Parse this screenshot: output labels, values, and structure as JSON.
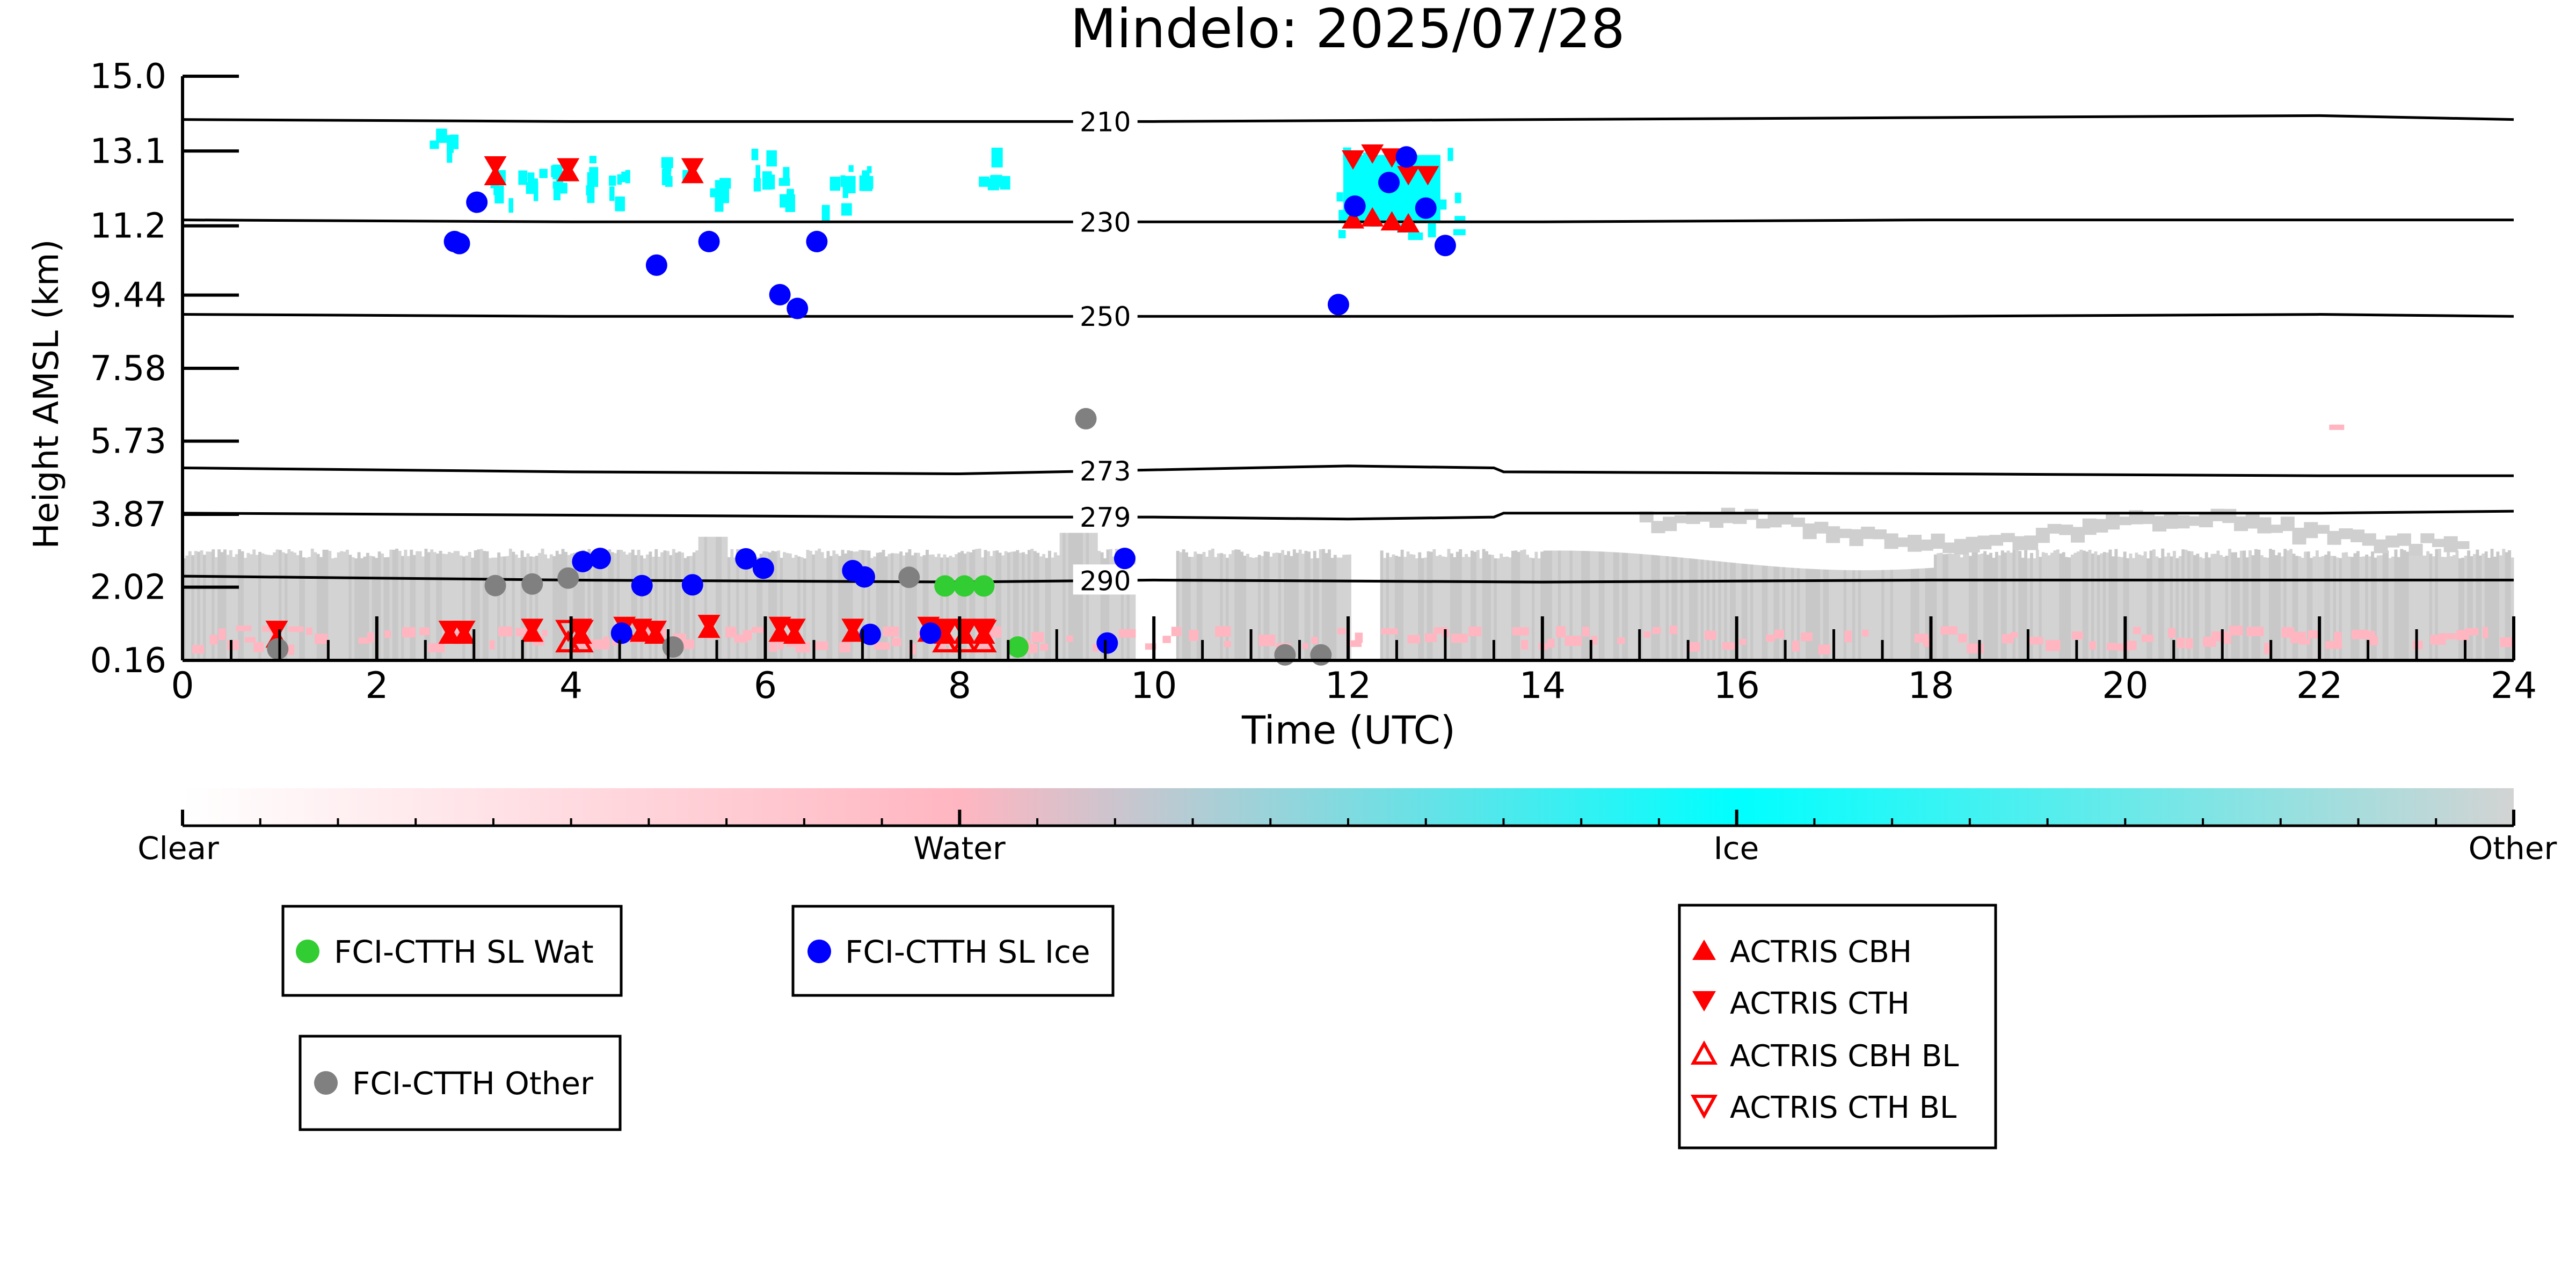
{
  "chart_data": {
    "type": "scatter",
    "title": "Mindelo: 2025/07/28",
    "xlabel": "Time (UTC)",
    "ylabel": "Height AMSL (km)",
    "xlim": [
      0,
      24
    ],
    "ylim": [
      0.16,
      15.0
    ],
    "xticks": [
      "0",
      "2",
      "4",
      "6",
      "8",
      "10",
      "12",
      "14",
      "16",
      "18",
      "20",
      "22",
      "24"
    ],
    "yticks": [
      "0.16",
      "2.02",
      "3.87",
      "5.73",
      "7.58",
      "9.44",
      "11.2",
      "13.1",
      "15.0"
    ],
    "yticks_values": [
      0.16,
      2.02,
      3.87,
      5.73,
      7.58,
      9.44,
      11.2,
      13.1,
      15.0
    ],
    "grid": false,
    "colors": {
      "water": "#32cd32",
      "ice": "#0000ff",
      "other": "#808080",
      "actris": "#ff0000",
      "isotherm": "#000000"
    },
    "isotherms": [
      {
        "label": "210",
        "x": [
          0,
          4,
          8,
          10,
          14,
          18,
          22,
          24
        ],
        "y": [
          13.9,
          13.85,
          13.85,
          13.85,
          13.9,
          13.95,
          14.0,
          13.9
        ]
      },
      {
        "label": "230",
        "x": [
          0,
          4,
          8,
          10,
          14,
          18,
          22,
          24
        ],
        "y": [
          11.35,
          11.3,
          11.3,
          11.3,
          11.3,
          11.35,
          11.35,
          11.35
        ]
      },
      {
        "label": "250",
        "x": [
          0,
          4,
          8,
          10,
          14,
          18,
          22,
          24
        ],
        "y": [
          8.95,
          8.9,
          8.9,
          8.9,
          8.9,
          8.9,
          8.95,
          8.9
        ]
      },
      {
        "label": "273",
        "x": [
          0,
          4,
          8,
          10,
          12,
          13.5,
          13.6,
          18,
          22,
          24
        ],
        "y": [
          5.05,
          4.95,
          4.9,
          5.0,
          5.1,
          5.05,
          4.95,
          4.9,
          4.85,
          4.85
        ]
      },
      {
        "label": "279",
        "x": [
          0,
          4,
          8,
          10,
          12,
          13.5,
          13.6,
          18,
          22,
          24
        ],
        "y": [
          3.9,
          3.85,
          3.8,
          3.8,
          3.75,
          3.8,
          3.9,
          3.9,
          3.9,
          3.95
        ]
      },
      {
        "label": "290",
        "x": [
          0,
          4,
          8,
          10,
          14,
          18,
          22,
          24
        ],
        "y": [
          2.3,
          2.2,
          2.15,
          2.2,
          2.15,
          2.2,
          2.2,
          2.2
        ]
      }
    ],
    "series": [
      {
        "name": "FCI-CTTH SL Wat",
        "marker": "circle",
        "x": [
          7.85,
          8.05,
          8.25,
          8.6
        ],
        "y": [
          2.05,
          2.05,
          2.05,
          0.5
        ]
      },
      {
        "name": "FCI-CTTH SL Ice",
        "marker": "circle",
        "x": [
          2.8,
          2.85,
          3.03,
          4.12,
          4.3,
          4.52,
          4.73,
          4.88,
          5.25,
          5.42,
          5.8,
          5.98,
          6.15,
          6.33,
          6.53,
          6.9,
          7.02,
          7.08,
          7.7,
          9.52,
          9.7,
          11.9,
          12.07,
          12.42,
          12.6,
          12.8,
          13.0
        ],
        "y": [
          10.8,
          10.75,
          11.8,
          2.67,
          2.75,
          0.85,
          2.06,
          10.2,
          2.08,
          10.8,
          2.74,
          2.5,
          9.45,
          9.1,
          10.8,
          2.44,
          2.28,
          0.82,
          0.85,
          0.6,
          2.75,
          9.2,
          11.7,
          12.3,
          12.95,
          11.65,
          10.7
        ]
      },
      {
        "name": "FCI-CTTH Other",
        "marker": "circle",
        "x": [
          0.98,
          3.22,
          3.6,
          3.97,
          5.05,
          7.48,
          9.3,
          11.35,
          11.72
        ],
        "y": [
          0.45,
          2.06,
          2.1,
          2.25,
          0.5,
          2.27,
          6.3,
          0.3,
          0.3
        ]
      },
      {
        "name": "ACTRIS CBH",
        "marker": "triangle-up",
        "x": [
          0.97,
          2.75,
          2.9,
          3.22,
          3.6,
          3.97,
          4.1,
          4.55,
          4.72,
          4.87,
          5.25,
          5.42,
          6.15,
          6.3,
          6.9,
          7.68,
          7.85,
          8.05,
          8.25,
          12.05,
          12.25,
          12.45,
          12.62
        ],
        "y": [
          0.7,
          0.8,
          0.8,
          12.45,
          0.85,
          12.55,
          0.8,
          0.9,
          0.85,
          0.8,
          12.5,
          0.95,
          0.85,
          0.8,
          0.85,
          0.85,
          0.8,
          0.8,
          0.8,
          11.35,
          11.4,
          11.3,
          11.25
        ]
      },
      {
        "name": "ACTRIS CTH",
        "marker": "triangle-down",
        "x": [
          0.97,
          2.75,
          2.9,
          3.22,
          3.6,
          3.97,
          4.1,
          4.55,
          4.72,
          4.87,
          5.25,
          5.42,
          6.15,
          6.3,
          6.9,
          7.68,
          7.85,
          8.05,
          8.25,
          12.05,
          12.25,
          12.45,
          12.62,
          12.82
        ],
        "y": [
          0.95,
          0.95,
          0.95,
          12.75,
          1.0,
          12.7,
          1.0,
          1.05,
          1.0,
          0.95,
          12.7,
          1.1,
          1.05,
          1.0,
          1.0,
          1.05,
          1.0,
          1.0,
          1.0,
          12.9,
          13.05,
          12.95,
          12.5,
          12.5
        ]
      },
      {
        "name": "ACTRIS CBH BL",
        "marker": "triangle-up-open",
        "x": [
          3.97,
          4.1,
          7.85,
          8.05,
          8.25
        ],
        "y": [
          0.6,
          0.6,
          0.6,
          0.6,
          0.6
        ]
      },
      {
        "name": "ACTRIS CTH BL",
        "marker": "triangle-down-open",
        "x": [
          3.97,
          4.1,
          7.85,
          8.05,
          8.25
        ],
        "y": [
          0.95,
          0.95,
          0.95,
          0.95,
          0.95
        ]
      }
    ],
    "colorbar": {
      "labels": [
        "Clear",
        "Water",
        "Ice",
        "Other"
      ],
      "stops": [
        "#ffffff",
        "#ffb6c1",
        "#00ffff",
        "#d3d3d3"
      ]
    },
    "legends": [
      {
        "entries": [
          "FCI-CTTH SL Wat"
        ]
      },
      {
        "entries": [
          "FCI-CTTH SL Ice"
        ]
      },
      {
        "entries": [
          "FCI-CTTH Other"
        ]
      },
      {
        "entries": [
          "ACTRIS CBH",
          "ACTRIS CTH",
          "ACTRIS CBH BL",
          "ACTRIS CTH BL"
        ]
      }
    ]
  }
}
